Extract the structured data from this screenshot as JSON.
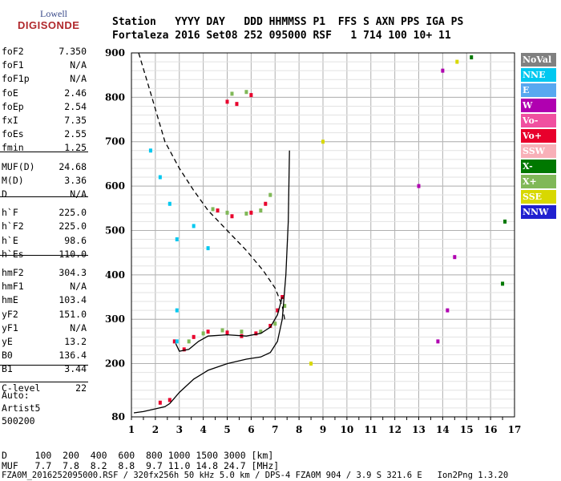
{
  "logo": {
    "top": "Lowell",
    "bottom": "DIGISONDE"
  },
  "header": {
    "line1": "Station   YYYY DAY   DDD HHMMSS P1  FFS S AXN PPS IGA PS",
    "line2": "Fortaleza 2016 Set08 252 095000 RSF   1 714 100 10+ 11"
  },
  "params": [
    {
      "k": "foF2",
      "v": "7.350"
    },
    {
      "k": "foF1",
      "v": "N/A"
    },
    {
      "k": "foF1p",
      "v": "N/A"
    },
    {
      "k": "foE",
      "v": "2.46"
    },
    {
      "k": "foEp",
      "v": "2.54"
    },
    {
      "k": "fxI",
      "v": "7.35"
    },
    {
      "k": "foEs",
      "v": "2.55"
    },
    {
      "k": "fmin",
      "v": "1.25"
    },
    {
      "k": "MUF(D)",
      "v": "24.68"
    },
    {
      "k": "M(D)",
      "v": "3.36"
    },
    {
      "k": "D",
      "v": "N/A"
    },
    {
      "k": "h`F",
      "v": "225.0"
    },
    {
      "k": "h`F2",
      "v": "225.0"
    },
    {
      "k": "h`E",
      "v": "98.6"
    },
    {
      "k": "h`Es",
      "v": "110.0"
    },
    {
      "k": "hmF2",
      "v": "304.3"
    },
    {
      "k": "hmF1",
      "v": "N/A"
    },
    {
      "k": "hmE",
      "v": "103.4"
    },
    {
      "k": "yF2",
      "v": "151.0"
    },
    {
      "k": "yF1",
      "v": "N/A"
    },
    {
      "k": "yE",
      "v": "13.2"
    },
    {
      "k": "B0",
      "v": "136.4"
    },
    {
      "k": "B1",
      "v": "3.44"
    },
    {
      "k": "C-level",
      "v": "22"
    }
  ],
  "auto": {
    "l1": "Auto:",
    "l2": "Artist5",
    "l3": "500200"
  },
  "legend": [
    {
      "label": "NoVal",
      "color": "#808080"
    },
    {
      "label": "NNE",
      "color": "#00c8f0"
    },
    {
      "label": "E",
      "color": "#58a8f0"
    },
    {
      "label": "W",
      "color": "#b000b0"
    },
    {
      "label": "Vo-",
      "color": "#f050a0"
    },
    {
      "label": "Vo+",
      "color": "#e8002c"
    },
    {
      "label": "SSW",
      "color": "#f8b0b8"
    },
    {
      "label": "X-",
      "color": "#007800"
    },
    {
      "label": "X+",
      "color": "#80b858"
    },
    {
      "label": "SSE",
      "color": "#d8d800"
    },
    {
      "label": "NNW",
      "color": "#2020d0"
    }
  ],
  "footer": {
    "d_line": "D     100  200  400  600  800 1000 1500 3000 [km]",
    "muf_line": "MUF   7.7  7.8  8.2  8.8  9.7 11.0 14.8 24.7 [MHz]",
    "file_line": "FZA0M_2016252095000.RSF / 320fx256h 50 kHz 5.0 km / DPS-4 FZA0M 904 / 3.9 S 321.6 E   Ion2Png 1.3.20"
  },
  "chart_data": {
    "type": "scatter",
    "x_ticks": [
      1,
      2,
      3,
      4,
      5,
      6,
      7,
      8,
      9,
      10,
      11,
      12,
      13,
      14,
      15,
      16,
      17
    ],
    "y_ticks": [
      80,
      200,
      300,
      400,
      500,
      600,
      700,
      800,
      900
    ],
    "xlim": [
      1,
      17
    ],
    "ylim": [
      80,
      900
    ],
    "grid": true,
    "series": [
      {
        "name": "Vo+",
        "color": "#e8002c",
        "points": [
          [
            2.8,
            250
          ],
          [
            3.2,
            232
          ],
          [
            3.6,
            260
          ],
          [
            4.2,
            272
          ],
          [
            5.0,
            270
          ],
          [
            5.6,
            262
          ],
          [
            6.2,
            268
          ],
          [
            6.8,
            285
          ],
          [
            7.1,
            320
          ],
          [
            7.3,
            350
          ],
          [
            4.6,
            545
          ],
          [
            5.2,
            532
          ],
          [
            6.0,
            540
          ],
          [
            6.6,
            560
          ],
          [
            5.0,
            790
          ],
          [
            5.4,
            785
          ],
          [
            6.0,
            805
          ],
          [
            2.2,
            112
          ],
          [
            2.6,
            118
          ]
        ]
      },
      {
        "name": "X+",
        "color": "#80b858",
        "points": [
          [
            3.4,
            250
          ],
          [
            4.0,
            268
          ],
          [
            4.8,
            275
          ],
          [
            5.6,
            272
          ],
          [
            6.4,
            272
          ],
          [
            7.0,
            290
          ],
          [
            7.4,
            330
          ],
          [
            4.4,
            548
          ],
          [
            5.0,
            540
          ],
          [
            5.8,
            538
          ],
          [
            6.4,
            545
          ],
          [
            6.8,
            580
          ],
          [
            5.2,
            808
          ],
          [
            5.8,
            812
          ]
        ]
      },
      {
        "name": "NNE",
        "color": "#00c8f0",
        "points": [
          [
            1.8,
            680
          ],
          [
            2.2,
            620
          ],
          [
            2.6,
            560
          ],
          [
            2.9,
            250
          ],
          [
            2.9,
            480
          ],
          [
            3.6,
            510
          ],
          [
            4.2,
            460
          ],
          [
            2.9,
            320
          ]
        ]
      },
      {
        "name": "W",
        "color": "#b000b0",
        "points": [
          [
            13.8,
            250
          ],
          [
            14.2,
            320
          ],
          [
            14.5,
            440
          ],
          [
            13.0,
            600
          ],
          [
            14.0,
            860
          ]
        ]
      },
      {
        "name": "X-",
        "color": "#007800",
        "points": [
          [
            16.5,
            380
          ],
          [
            16.6,
            520
          ],
          [
            15.2,
            890
          ]
        ]
      },
      {
        "name": "SSE",
        "color": "#d8d800",
        "points": [
          [
            9.0,
            700
          ],
          [
            14.6,
            880
          ],
          [
            8.5,
            200
          ]
        ]
      }
    ],
    "lines": [
      {
        "name": "profile",
        "style": "solid",
        "color": "#000000",
        "points": [
          [
            1.1,
            89
          ],
          [
            1.5,
            92
          ],
          [
            2.0,
            98
          ],
          [
            2.4,
            103
          ],
          [
            2.6,
            110
          ],
          [
            3.0,
            135
          ],
          [
            3.6,
            165
          ],
          [
            4.2,
            185
          ],
          [
            5.0,
            200
          ],
          [
            5.8,
            210
          ],
          [
            6.4,
            215
          ],
          [
            6.8,
            225
          ],
          [
            7.1,
            250
          ],
          [
            7.3,
            300
          ],
          [
            7.45,
            400
          ],
          [
            7.55,
            520
          ],
          [
            7.6,
            680
          ]
        ]
      },
      {
        "name": "trace-fit",
        "style": "solid",
        "color": "#000000",
        "points": [
          [
            2.85,
            245
          ],
          [
            3.0,
            228
          ],
          [
            3.4,
            232
          ],
          [
            3.8,
            250
          ],
          [
            4.2,
            262
          ],
          [
            5.0,
            265
          ],
          [
            5.8,
            262
          ],
          [
            6.4,
            268
          ],
          [
            6.8,
            282
          ],
          [
            7.1,
            310
          ],
          [
            7.3,
            350
          ]
        ]
      },
      {
        "name": "muf-curve",
        "style": "dashed",
        "color": "#000000",
        "points": [
          [
            1.3,
            900
          ],
          [
            1.8,
            810
          ],
          [
            2.4,
            700
          ],
          [
            3.0,
            640
          ],
          [
            3.6,
            590
          ],
          [
            4.2,
            545
          ],
          [
            5.0,
            500
          ],
          [
            5.8,
            455
          ],
          [
            6.5,
            410
          ],
          [
            7.0,
            370
          ],
          [
            7.3,
            330
          ],
          [
            7.4,
            300
          ]
        ]
      }
    ]
  }
}
